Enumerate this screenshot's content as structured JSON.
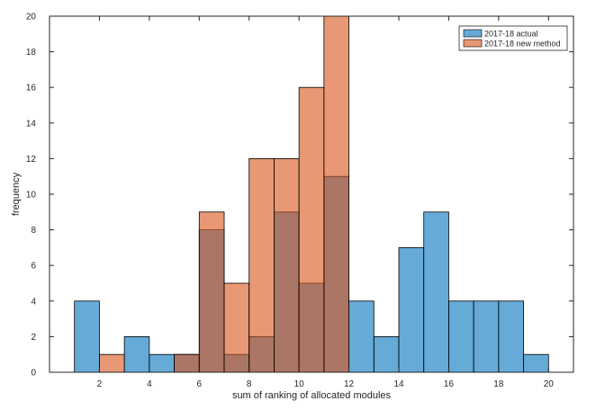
{
  "chart_data": {
    "type": "bar",
    "xlabel": "sum of ranking of allocated modules",
    "ylabel": "frequency",
    "xlim": [
      0,
      21
    ],
    "ylim": [
      0,
      20
    ],
    "xticks": [
      2,
      4,
      6,
      8,
      10,
      12,
      14,
      16,
      18,
      20
    ],
    "yticks": [
      0,
      2,
      4,
      6,
      8,
      10,
      12,
      14,
      16,
      18,
      20
    ],
    "bin_edges": [
      1,
      2,
      3,
      4,
      5,
      6,
      7,
      8,
      9,
      10,
      11,
      12,
      13,
      14,
      15,
      16,
      17,
      18,
      19,
      20
    ],
    "legend_position": "top-right",
    "series": [
      {
        "name": "2017-18 actual",
        "color": "#0072BD",
        "values": [
          4,
          0,
          2,
          1,
          1,
          8,
          1,
          2,
          9,
          5,
          11,
          4,
          2,
          7,
          9,
          4,
          4,
          4,
          1
        ]
      },
      {
        "name": "2017-18 new method",
        "color": "#D95319",
        "values": [
          0,
          1,
          0,
          0,
          1,
          9,
          5,
          12,
          12,
          16,
          20,
          0,
          0,
          0,
          0,
          0,
          0,
          0,
          0
        ]
      }
    ]
  }
}
